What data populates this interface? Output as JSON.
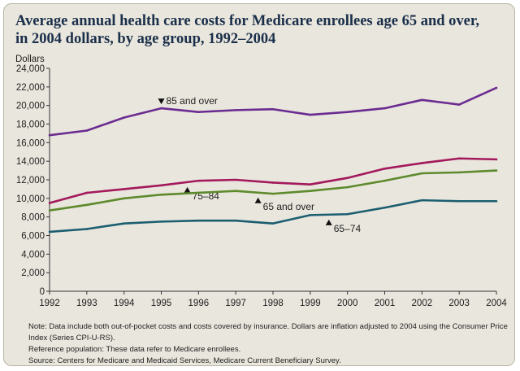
{
  "chart_data": {
    "type": "line",
    "title_lines": [
      "Average annual health care costs for Medicare enrollees age 65 and over,",
      "in 2004 dollars, by age group, 1992–2004"
    ],
    "ylabel": "Dollars",
    "xlabel": "",
    "ylim": [
      0,
      24000
    ],
    "y_ticks": [
      "0",
      "2,000",
      "4,000",
      "6,000",
      "8,000",
      "10,000",
      "12,000",
      "14,000",
      "16,000",
      "18,000",
      "20,000",
      "22,000",
      "24,000"
    ],
    "y_tick_values": [
      0,
      2000,
      4000,
      6000,
      8000,
      10000,
      12000,
      14000,
      16000,
      18000,
      20000,
      22000,
      24000
    ],
    "x": [
      "1992",
      "1993",
      "1994",
      "1995",
      "1996",
      "1997",
      "1998",
      "1999",
      "2000",
      "2001",
      "2002",
      "2003",
      "2004"
    ],
    "grid": false,
    "series": [
      {
        "name": "85 and over",
        "color": "#6b2c91",
        "values": [
          16800,
          17300,
          18700,
          19700,
          19300,
          19500,
          19600,
          19000,
          19300,
          19700,
          20600,
          20100,
          21900
        ],
        "label_at": "1995",
        "marker": "down"
      },
      {
        "name": "75–84",
        "color": "#a3195b",
        "values": [
          9500,
          10600,
          11000,
          11400,
          11900,
          12000,
          11700,
          11500,
          12200,
          13200,
          13800,
          14300,
          14200
        ],
        "label_at": "1995.7",
        "marker": "up"
      },
      {
        "name": "65 and over",
        "color": "#5d8a2c",
        "values": [
          8700,
          9300,
          10000,
          10400,
          10600,
          10800,
          10500,
          10800,
          11200,
          11900,
          12700,
          12800,
          13000
        ],
        "label_at": "1997.6",
        "marker": "up"
      },
      {
        "name": "65–74",
        "color": "#1b5e70",
        "values": [
          6400,
          6700,
          7300,
          7500,
          7600,
          7600,
          7300,
          8200,
          8300,
          9000,
          9800,
          9700,
          9700
        ],
        "label_at": "1999.5",
        "marker": "up"
      }
    ]
  },
  "notes": {
    "note": "Note: Data include both out-of-pocket costs and costs covered by insurance. Dollars are inflation adjusted to 2004 using the Consumer Price Index (Series CPI-U-RS).",
    "reference": "Reference population: These data refer to Medicare enrollees.",
    "source": "Source: Centers for Medicare and Medicaid Services, Medicare Current Beneficiary Survey."
  }
}
